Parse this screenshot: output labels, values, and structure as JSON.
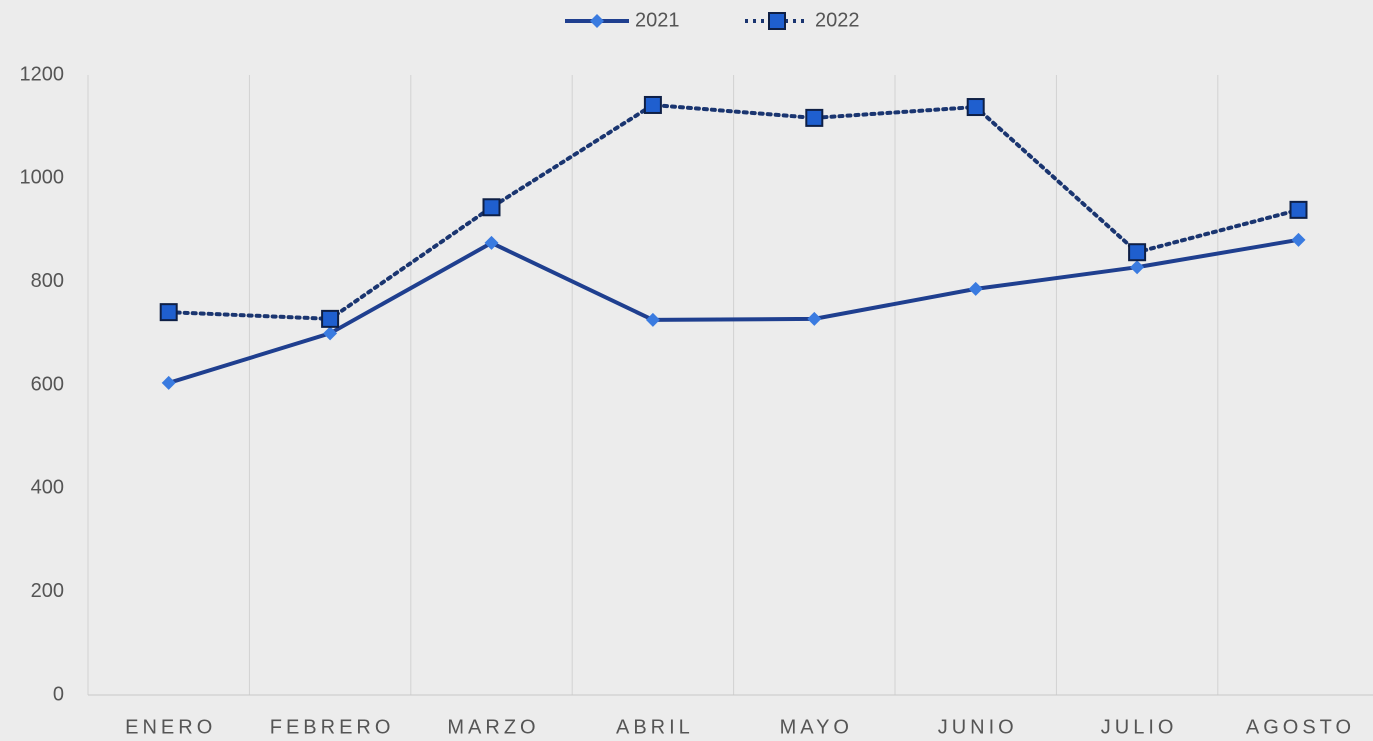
{
  "chart_data": {
    "type": "line",
    "categories": [
      "ENERO",
      "FEBRERO",
      "MARZO",
      "ABRIL",
      "MAYO",
      "JUNIO",
      "JULIO",
      "AGOSTO"
    ],
    "series": [
      {
        "name": "2021",
        "color": "#1f3f8f",
        "marker_color": "#3a7be0",
        "line_style": "solid",
        "marker": "diamond",
        "values": [
          604,
          700,
          875,
          726,
          728,
          786,
          828,
          881
        ]
      },
      {
        "name": "2022",
        "color": "#1a3570",
        "marker_color": "#1f5fcf",
        "line_style": "dotted",
        "marker": "square",
        "values": [
          741,
          728,
          944,
          1142,
          1117,
          1138,
          857,
          939
        ]
      }
    ],
    "ylim": [
      0,
      1200
    ],
    "yticks": [
      0,
      200,
      400,
      600,
      800,
      1000,
      1200
    ],
    "legend": "top"
  }
}
